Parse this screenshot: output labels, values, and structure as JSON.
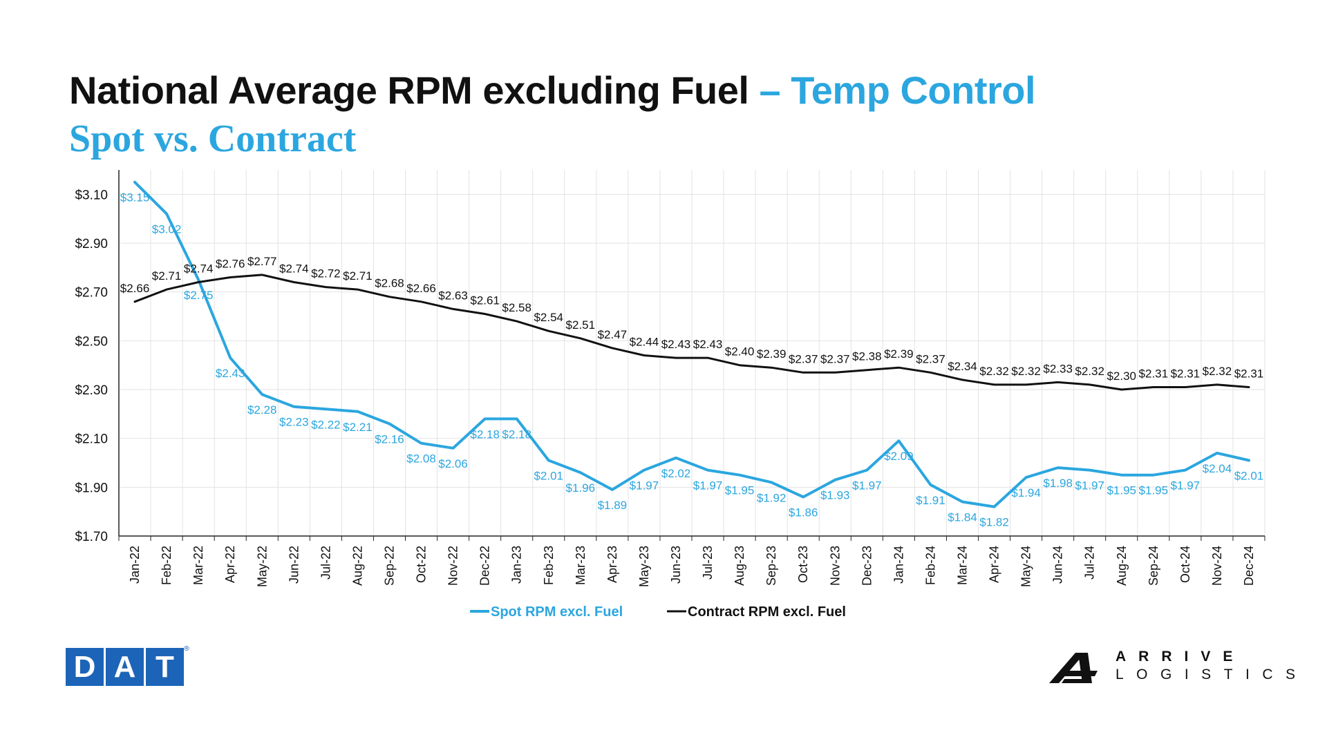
{
  "title": {
    "main": "National Average RPM excluding Fuel",
    "accent": "– Temp Control"
  },
  "subtitle": "Spot vs. Contract",
  "logos": {
    "dat": {
      "letters": [
        "D",
        "A",
        "T"
      ],
      "mark": "®"
    },
    "arrive": {
      "line1": "ARRIVE",
      "line2": "LOGISTICS"
    }
  },
  "colors": {
    "spot": "#2ba6df",
    "contract": "#111111",
    "grid": "#e2e2e2",
    "axis": "#222222",
    "dat_blue": "#1c64b7"
  },
  "chart_data": {
    "type": "line",
    "title": "",
    "xlabel": "",
    "ylabel": "",
    "ylim": [
      1.7,
      3.2
    ],
    "yticks": [
      1.7,
      1.9,
      2.1,
      2.3,
      2.5,
      2.7,
      2.9,
      3.1
    ],
    "yticklabels": [
      "$1.70",
      "$1.90",
      "$2.10",
      "$2.30",
      "$2.50",
      "$2.70",
      "$2.90",
      "$3.10"
    ],
    "grid": true,
    "legend": "bottom-center",
    "categories": [
      "Jan-22",
      "Feb-22",
      "Mar-22",
      "Apr-22",
      "May-22",
      "Jun-22",
      "Jul-22",
      "Aug-22",
      "Sep-22",
      "Oct-22",
      "Nov-22",
      "Dec-22",
      "Jan-23",
      "Feb-23",
      "Mar-23",
      "Apr-23",
      "May-23",
      "Jun-23",
      "Jul-23",
      "Aug-23",
      "Sep-23",
      "Oct-23",
      "Nov-23",
      "Dec-23",
      "Jan-24",
      "Feb-24",
      "Mar-24",
      "Apr-24",
      "May-24",
      "Jun-24",
      "Jul-24",
      "Aug-24",
      "Sep-24",
      "Oct-24",
      "Nov-24",
      "Dec-24"
    ],
    "series": [
      {
        "name": "Spot RPM excl. Fuel",
        "color": "#2ba6df",
        "values": [
          3.15,
          3.02,
          2.75,
          2.43,
          2.28,
          2.23,
          2.22,
          2.21,
          2.16,
          2.08,
          2.06,
          2.18,
          2.18,
          2.01,
          1.96,
          1.89,
          1.97,
          2.02,
          1.97,
          1.95,
          1.92,
          1.86,
          1.93,
          1.97,
          2.09,
          1.91,
          1.84,
          1.82,
          1.94,
          1.98,
          1.97,
          1.95,
          1.95,
          1.97,
          2.04,
          2.01
        ],
        "labels": [
          "$3.15",
          "$3.02",
          "$2.75",
          "$2.43",
          "$2.28",
          "$2.23",
          "$2.22",
          "$2.21",
          "$2.16",
          "$2.08",
          "$2.06",
          "$2.18",
          "$2.18",
          "$2.01",
          "$1.96",
          "$1.89",
          "$1.97",
          "$2.02",
          "$1.97",
          "$1.95",
          "$1.92",
          "$1.86",
          "$1.93",
          "$1.97",
          "$2.09",
          "$1.91",
          "$1.84",
          "$1.82",
          "$1.94",
          "$1.98",
          "$1.97",
          "$1.95",
          "$1.95",
          "$1.97",
          "$2.04",
          "$2.01"
        ]
      },
      {
        "name": "Contract RPM excl. Fuel",
        "color": "#111111",
        "values": [
          2.66,
          2.71,
          2.74,
          2.76,
          2.77,
          2.74,
          2.72,
          2.71,
          2.68,
          2.66,
          2.63,
          2.61,
          2.58,
          2.54,
          2.51,
          2.47,
          2.44,
          2.43,
          2.43,
          2.4,
          2.39,
          2.37,
          2.37,
          2.38,
          2.39,
          2.37,
          2.34,
          2.32,
          2.32,
          2.33,
          2.32,
          2.3,
          2.31,
          2.31,
          2.32,
          2.31
        ],
        "labels": [
          "$2.66",
          "$2.71",
          "$2.74",
          "$2.76",
          "$2.77",
          "$2.74",
          "$2.72",
          "$2.71",
          "$2.68",
          "$2.66",
          "$2.63",
          "$2.61",
          "$2.58",
          "$2.54",
          "$2.51",
          "$2.47",
          "$2.44",
          "$2.43",
          "$2.43",
          "$2.40",
          "$2.39",
          "$2.37",
          "$2.37",
          "$2.38",
          "$2.39",
          "$2.37",
          "$2.34",
          "$2.32",
          "$2.32",
          "$2.33",
          "$2.32",
          "$2.30",
          "$2.31",
          "$2.31",
          "$2.32",
          "$2.31"
        ]
      }
    ]
  }
}
